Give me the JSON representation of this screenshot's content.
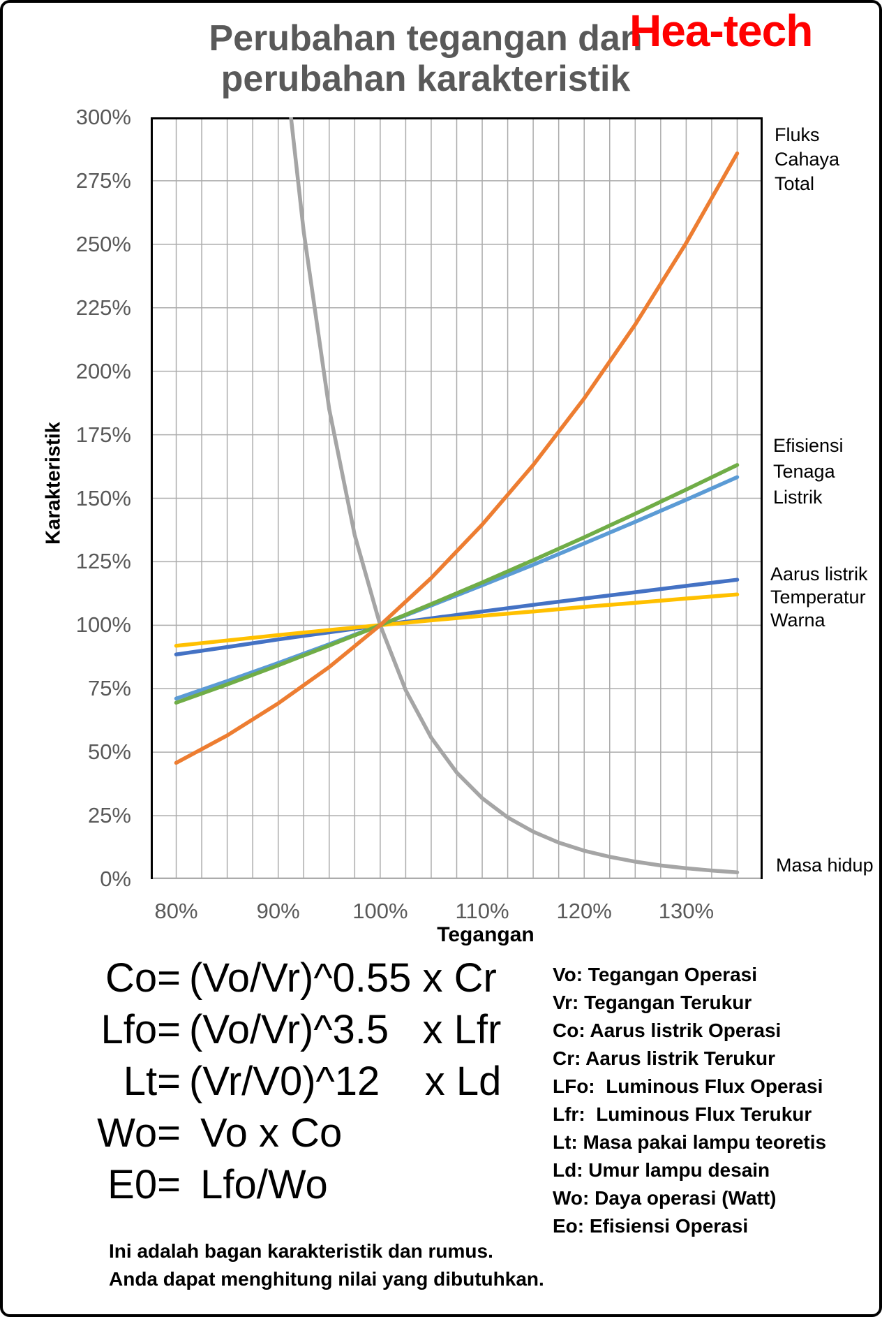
{
  "header": {
    "title_line1": "Perubahan tegangan dan",
    "title_line2": "perubahan karakteristik",
    "logo_text": "Hea-tech",
    "title_color": "#595959",
    "logo_color": "#FF0000"
  },
  "chart_data": {
    "type": "line",
    "title": "Perubahan tegangan dan perubahan karakteristik",
    "xlabel": "Tegangan",
    "ylabel": "Karakteristik",
    "grid": true,
    "grid_color": "#ABABAB",
    "legend_position": "right-annotations",
    "x_axis": {
      "min": 77.5,
      "max": 137.5,
      "grid_step": 2.5,
      "unit": "%",
      "ticks": [
        {
          "v": 80,
          "label": "80%"
        },
        {
          "v": 90,
          "label": "90%"
        },
        {
          "v": 100,
          "label": "100%"
        },
        {
          "v": 110,
          "label": "110%"
        },
        {
          "v": 120,
          "label": "120%"
        },
        {
          "v": 130,
          "label": "130%"
        }
      ]
    },
    "y_axis": {
      "min": 0,
      "max": 300,
      "grid_step": 25,
      "unit": "%",
      "ticks": [
        {
          "v": 0,
          "label": "0%"
        },
        {
          "v": 25,
          "label": "25%"
        },
        {
          "v": 50,
          "label": "50%"
        },
        {
          "v": 75,
          "label": "75%"
        },
        {
          "v": 100,
          "label": "100%"
        },
        {
          "v": 125,
          "label": "125%"
        },
        {
          "v": 150,
          "label": "150%"
        },
        {
          "v": 175,
          "label": "175%"
        },
        {
          "v": 200,
          "label": "200%"
        },
        {
          "v": 225,
          "label": "225%"
        },
        {
          "v": 250,
          "label": "250%"
        },
        {
          "v": 275,
          "label": "275%"
        },
        {
          "v": 300,
          "label": "300%"
        }
      ]
    },
    "series": [
      {
        "id": "masa-hidup",
        "name": "Masa hidup",
        "color": "#A5A5A5",
        "points": [
          [
            91.25,
            300
          ],
          [
            92.5,
            254.9
          ],
          [
            95,
            185.1
          ],
          [
            97.5,
            135.5
          ],
          [
            100,
            100
          ],
          [
            102.5,
            74.4
          ],
          [
            105,
            55.7
          ],
          [
            107.5,
            42.0
          ],
          [
            110,
            31.9
          ],
          [
            112.5,
            24.3
          ],
          [
            115,
            18.7
          ],
          [
            117.5,
            14.4
          ],
          [
            120,
            11.2
          ],
          [
            122.5,
            8.8
          ],
          [
            125,
            6.9
          ],
          [
            127.5,
            5.4
          ],
          [
            130,
            4.3
          ],
          [
            132.5,
            3.4
          ],
          [
            135,
            2.7
          ]
        ]
      },
      {
        "id": "tenaga-listrik",
        "name": "Tenaga Listrik",
        "color": "#5B9BD5",
        "points": [
          [
            80,
            71.1
          ],
          [
            85,
            78.0
          ],
          [
            90,
            85.1
          ],
          [
            95,
            92.5
          ],
          [
            100,
            100
          ],
          [
            105,
            107.8
          ],
          [
            110,
            115.7
          ],
          [
            115,
            123.8
          ],
          [
            120,
            132.2
          ],
          [
            125,
            140.7
          ],
          [
            130,
            149.4
          ],
          [
            135,
            158.3
          ]
        ]
      },
      {
        "id": "aarus-listrik",
        "name": "Aarus listrik",
        "color": "#4472C4",
        "points": [
          [
            80,
            88.5
          ],
          [
            85,
            91.4
          ],
          [
            90,
            94.4
          ],
          [
            95,
            97.2
          ],
          [
            100,
            100
          ],
          [
            105,
            102.7
          ],
          [
            110,
            105.4
          ],
          [
            115,
            108.0
          ],
          [
            120,
            110.5
          ],
          [
            125,
            113.0
          ],
          [
            130,
            115.5
          ],
          [
            135,
            117.9
          ]
        ]
      },
      {
        "id": "temperatur-warna",
        "name": "Temperatur Warna",
        "color": "#FFC000",
        "points": [
          [
            80,
            91.9
          ],
          [
            85,
            94.0
          ],
          [
            90,
            96.1
          ],
          [
            95,
            98.1
          ],
          [
            100,
            100
          ],
          [
            105,
            101.9
          ],
          [
            110,
            103.7
          ],
          [
            115,
            105.4
          ],
          [
            120,
            107.2
          ],
          [
            125,
            108.8
          ],
          [
            130,
            110.5
          ],
          [
            135,
            112.1
          ]
        ]
      },
      {
        "id": "efisiensi",
        "name": "Efisiensi",
        "color": "#70AD47",
        "points": [
          [
            80,
            69.5
          ],
          [
            85,
            76.7
          ],
          [
            90,
            84.2
          ],
          [
            95,
            92.0
          ],
          [
            100,
            100
          ],
          [
            105,
            108.3
          ],
          [
            110,
            116.8
          ],
          [
            115,
            125.6
          ],
          [
            120,
            134.6
          ],
          [
            125,
            143.9
          ],
          [
            130,
            153.4
          ],
          [
            135,
            163.1
          ]
        ]
      },
      {
        "id": "fluks-cahaya-total",
        "name": "Fluks Cahaya Total",
        "color": "#ED7D31",
        "points": [
          [
            80,
            45.8
          ],
          [
            85,
            56.6
          ],
          [
            90,
            69.2
          ],
          [
            95,
            83.5
          ],
          [
            100,
            100
          ],
          [
            105,
            118.6
          ],
          [
            110,
            139.6
          ],
          [
            115,
            163.1
          ],
          [
            120,
            189.3
          ],
          [
            125,
            218.4
          ],
          [
            130,
            250.5
          ],
          [
            135,
            285.8
          ]
        ]
      }
    ],
    "annotations": {
      "flux": [
        "Fluks",
        "Cahaya",
        "Total"
      ],
      "efficiency": [
        "Efisiensi",
        "Tenaga",
        "Listrik"
      ],
      "current_and_cct": [
        "Aarus listrik",
        "Temperatur",
        "Warna"
      ],
      "lifetime": [
        "Masa hidup"
      ]
    }
  },
  "formulas": {
    "rows": [
      {
        "lhs": "Co=",
        "rhs": "(Vo/Vr)^0.55 x Cr"
      },
      {
        "lhs": "Lfo=",
        "rhs": "(Vo/Vr)^3.5   x Lfr"
      },
      {
        "lhs": "Lt=",
        "rhs": "(Vr/V0)^12    x Ld"
      },
      {
        "lhs": "Wo=",
        "rhs": " Vo x Co"
      },
      {
        "lhs": "E0=",
        "rhs": " Lfo/Wo"
      }
    ]
  },
  "definitions": {
    "items": [
      "Vo: Tegangan Operasi",
      "Vr: Tegangan Terukur",
      "Co: Aarus listrik Operasi",
      "Cr: Aarus listrik Terukur",
      "LFo:  Luminous Flux Operasi",
      "Lfr:  Luminous Flux Terukur",
      "Lt: Masa pakai lampu teoretis",
      "Ld: Umur lampu desain",
      "Wo: Daya operasi (Watt)",
      "Eo: Efisiensi Operasi"
    ]
  },
  "note": {
    "line1": "Ini adalah bagan karakteristik dan rumus.",
    "line2": "Anda dapat menghitung nilai yang dibutuhkan."
  }
}
